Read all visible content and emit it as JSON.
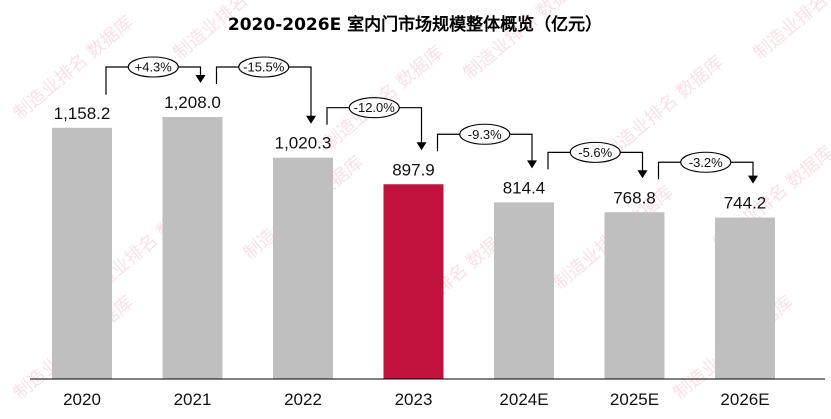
{
  "chart_data": {
    "type": "bar",
    "title": "2020-2026E 室内门市场规模整体概览（亿元）",
    "categories": [
      "2020",
      "2021",
      "2022",
      "2023",
      "2024E",
      "2025E",
      "2026E"
    ],
    "values": [
      1158.2,
      1208.0,
      1020.3,
      897.9,
      814.4,
      768.8,
      744.2
    ],
    "value_labels": [
      "1,158.2",
      "1,208.0",
      "1,020.3",
      "897.9",
      "814.4",
      "768.8",
      "744.2"
    ],
    "growth_labels": [
      "+4.3%",
      "-15.5%",
      "-12.0%",
      "-9.3%",
      "-5.6%",
      "-3.2%"
    ],
    "highlight_index": 3,
    "ylim": [
      0,
      1400
    ],
    "grid": false,
    "legend": "none",
    "colors": {
      "bar": "#bfbfbf",
      "highlight": "#c0123c",
      "text": "#111111",
      "axis": "#000000"
    }
  },
  "watermark": "制造业排名 数据库"
}
